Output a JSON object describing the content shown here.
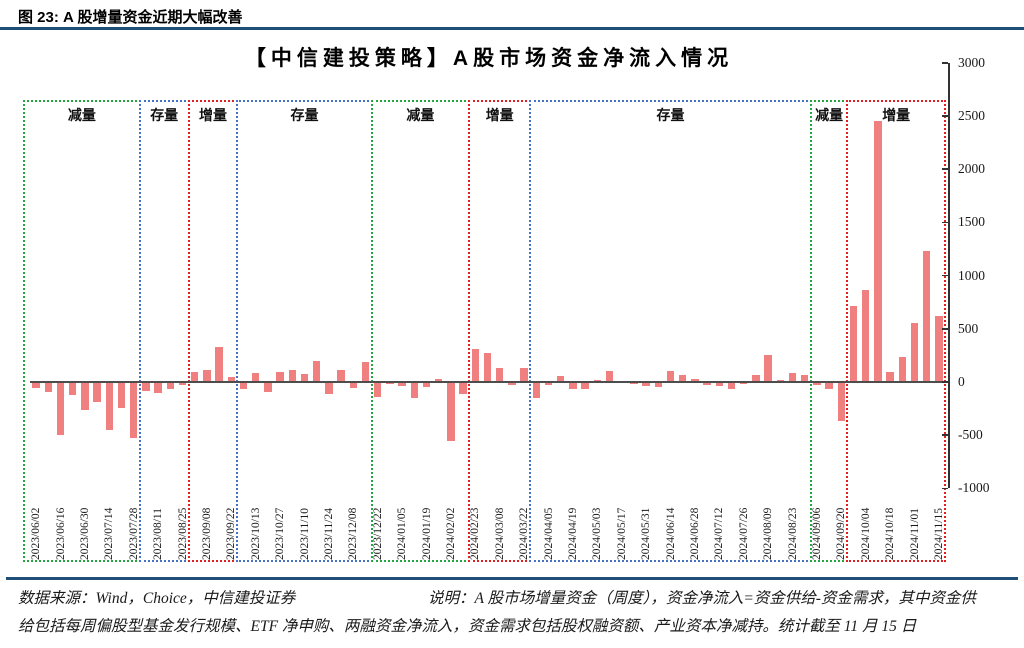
{
  "figure": {
    "caption": "图 23: A 股增量资金近期大幅改善",
    "rule_color": "#1F4E79"
  },
  "chart_data": {
    "type": "bar",
    "title": "【中信建投策略】A股市场资金净流入情况",
    "xlabel": "",
    "ylabel": "",
    "ylim": [
      -1000,
      3000
    ],
    "yticks": [
      3000,
      2500,
      2000,
      1500,
      1000,
      500,
      0,
      -500,
      -1000
    ],
    "grid": false,
    "bar_color": "#F08080",
    "note": "weekly bars, date label shown under every second bar; empty label = unlabeled week",
    "bars": [
      [
        "2023/06/02",
        -55
      ],
      [
        "",
        -95
      ],
      [
        "2023/06/16",
        -500
      ],
      [
        "",
        -125
      ],
      [
        "2023/06/30",
        -265
      ],
      [
        "",
        -190
      ],
      [
        "2023/07/14",
        -455
      ],
      [
        "",
        -240
      ],
      [
        "2023/07/28",
        -525
      ],
      [
        "",
        -80
      ],
      [
        "2023/08/11",
        -105
      ],
      [
        "",
        -70
      ],
      [
        "2023/08/25",
        -30
      ],
      [
        "",
        95
      ],
      [
        "2023/09/08",
        115
      ],
      [
        "",
        330
      ],
      [
        "2023/09/22",
        45
      ],
      [
        "",
        -65
      ],
      [
        "2023/10/13",
        85
      ],
      [
        "",
        -95
      ],
      [
        "2023/10/27",
        90
      ],
      [
        "",
        110
      ],
      [
        "2023/11/10",
        75
      ],
      [
        "",
        195
      ],
      [
        "2023/11/24",
        -115
      ],
      [
        "",
        115
      ],
      [
        "2023/12/08",
        -55
      ],
      [
        "",
        190
      ],
      [
        "2023/12/22",
        -140
      ],
      [
        "",
        -15
      ],
      [
        "2024/01/05",
        -40
      ],
      [
        "",
        -155
      ],
      [
        "2024/01/19",
        -45
      ],
      [
        "",
        25
      ],
      [
        "2024/02/02",
        -555
      ],
      [
        "",
        -115
      ],
      [
        "2024/02/23",
        310
      ],
      [
        "",
        275
      ],
      [
        "2024/03/08",
        135
      ],
      [
        "",
        -30
      ],
      [
        "2024/03/22",
        135
      ],
      [
        "",
        -155
      ],
      [
        "2024/04/05",
        -25
      ],
      [
        "",
        55
      ],
      [
        "2024/04/19",
        -70
      ],
      [
        "",
        -70
      ],
      [
        "2024/05/03",
        15
      ],
      [
        "",
        105
      ],
      [
        "2024/05/17",
        0
      ],
      [
        "",
        -15
      ],
      [
        "2024/05/31",
        -40
      ],
      [
        "",
        -45
      ],
      [
        "2024/06/14",
        105
      ],
      [
        "",
        70
      ],
      [
        "2024/06/28",
        25
      ],
      [
        "",
        -30
      ],
      [
        "2024/07/12",
        -35
      ],
      [
        "",
        -65
      ],
      [
        "2024/07/26",
        -20
      ],
      [
        "",
        65
      ],
      [
        "2024/08/09",
        255
      ],
      [
        "",
        15
      ],
      [
        "2024/08/23",
        80
      ],
      [
        "",
        70
      ],
      [
        "2024/09/06",
        -30
      ],
      [
        "",
        -70
      ],
      [
        "2024/09/20",
        -365
      ],
      [
        "",
        710
      ],
      [
        "2024/10/04",
        860
      ],
      [
        "",
        2450
      ],
      [
        "2024/10/18",
        95
      ],
      [
        "",
        235
      ],
      [
        "2024/11/01",
        550
      ],
      [
        "",
        1230
      ],
      [
        "2024/11/15",
        620
      ]
    ],
    "sections": [
      {
        "label": "减量",
        "color": "#22A63D",
        "start": 0,
        "end": 8
      },
      {
        "label": "存量",
        "color": "#4472C4",
        "start": 9,
        "end": 12
      },
      {
        "label": "增量",
        "color": "#E02020",
        "start": 13,
        "end": 16
      },
      {
        "label": "存量",
        "color": "#4472C4",
        "start": 17,
        "end": 27
      },
      {
        "label": "减量",
        "color": "#22A63D",
        "start": 28,
        "end": 35
      },
      {
        "label": "增量",
        "color": "#E02020",
        "start": 36,
        "end": 40
      },
      {
        "label": "存量",
        "color": "#4472C4",
        "start": 41,
        "end": 63
      },
      {
        "label": "减量",
        "color": "#22A63D",
        "start": 64,
        "end": 66
      },
      {
        "label": "增量",
        "color": "#E02020",
        "start": 67,
        "end": 74
      }
    ]
  },
  "footer": {
    "source": "数据来源：Wind，Choice，中信建投证券",
    "note_line1": "说明：A 股市场增量资金（周度），资金净流入=资金供给-资金需求，其中资金供",
    "note_line2": "给包括每周偏股型基金发行规模、ETF 净申购、两融资金净流入，资金需求包括股权融资额、产业资本净减持。统计截至 11 月 15 日"
  }
}
